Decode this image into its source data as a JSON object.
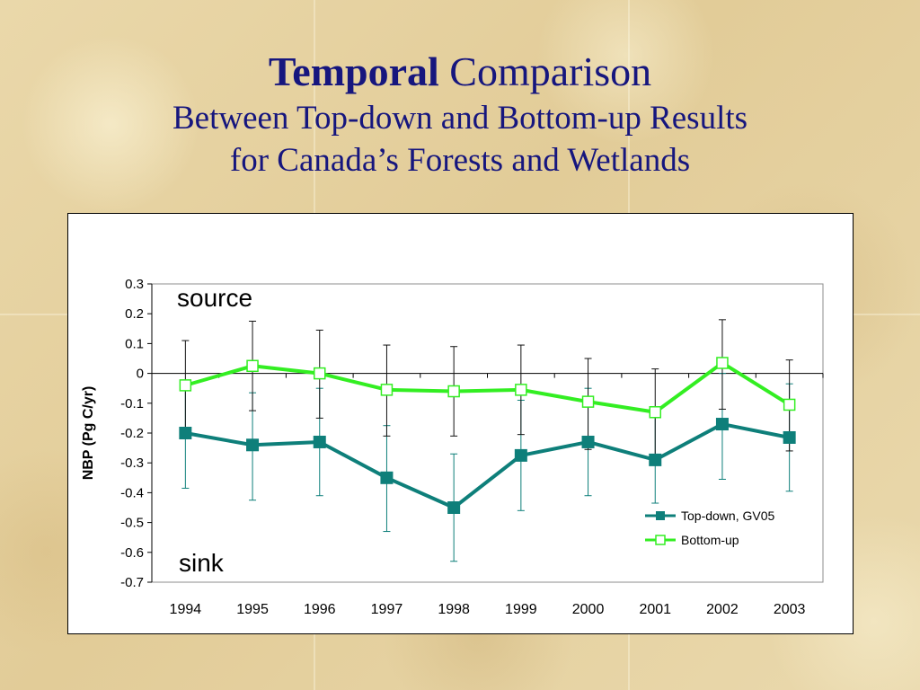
{
  "slide": {
    "title_bold": "Temporal",
    "title_rest": "Comparison",
    "subtitle_line1": "Between Top-down and Bottom-up Results",
    "subtitle_line2": "for Canada’s Forests and Wetlands",
    "title_color": "#16167e"
  },
  "chart_data": {
    "type": "line",
    "title": "",
    "xlabel": "",
    "ylabel": "NBP (Pg C/yr)",
    "categories": [
      "1994",
      "1995",
      "1996",
      "1997",
      "1998",
      "1999",
      "2000",
      "2001",
      "2002",
      "2003"
    ],
    "ylim": [
      -0.7,
      0.3
    ],
    "yticks": [
      0.3,
      0.2,
      0.1,
      0,
      -0.1,
      -0.2,
      -0.3,
      -0.4,
      -0.5,
      -0.6,
      -0.7
    ],
    "ytick_labels": [
      "0.3",
      "0.2",
      "0.1",
      "0",
      "-0.1",
      "-0.2",
      "-0.3",
      "-0.4",
      "-0.5",
      "-0.6",
      "-0.7"
    ],
    "grid": false,
    "legend_position": "lower-right",
    "annotations": {
      "top": "source",
      "bottom": "sink"
    },
    "series": [
      {
        "name": "Top-down, GV05",
        "color": "#0e7f7a",
        "marker": "filled-square",
        "values": [
          -0.2,
          -0.24,
          -0.23,
          -0.35,
          -0.45,
          -0.275,
          -0.23,
          -0.29,
          -0.17,
          -0.215
        ],
        "err_low": [
          -0.385,
          -0.425,
          -0.41,
          -0.53,
          -0.63,
          -0.46,
          -0.41,
          -0.435,
          -0.355,
          -0.395
        ],
        "err_high": [
          -0.035,
          -0.065,
          -0.05,
          -0.175,
          -0.27,
          -0.09,
          -0.05,
          -0.14,
          0.0,
          -0.035
        ]
      },
      {
        "name": "Bottom-up",
        "color": "#33ee22",
        "marker": "hollow-square",
        "values": [
          -0.04,
          0.025,
          0.0,
          -0.055,
          -0.06,
          -0.055,
          -0.095,
          -0.13,
          0.035,
          -0.105
        ],
        "err_low": [
          -0.21,
          -0.125,
          -0.15,
          -0.21,
          -0.21,
          -0.205,
          -0.255,
          -0.28,
          -0.12,
          -0.26
        ],
        "err_high": [
          0.11,
          0.175,
          0.145,
          0.095,
          0.09,
          0.095,
          0.05,
          0.015,
          0.18,
          0.045
        ]
      }
    ]
  }
}
